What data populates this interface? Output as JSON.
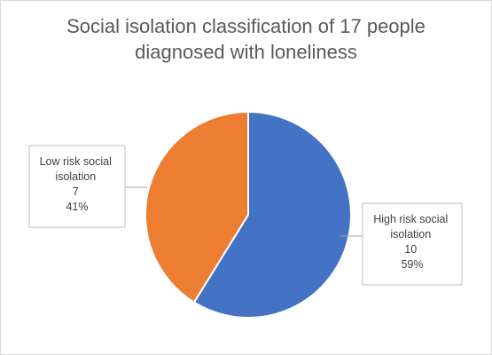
{
  "chart_data": {
    "type": "pie",
    "title_lines": [
      "Social isolation classification of 17 people",
      "diagnosed with loneliness"
    ],
    "series": [
      {
        "label_lines": [
          "High risk social",
          "isolation"
        ],
        "value": 10,
        "percent": "59%",
        "color": "#4472c4"
      },
      {
        "label_lines": [
          "Low risk social",
          "isolation"
        ],
        "value": 7,
        "percent": "41%",
        "color": "#ed7d31"
      }
    ],
    "legend": "none",
    "data_labels": "callouts"
  }
}
